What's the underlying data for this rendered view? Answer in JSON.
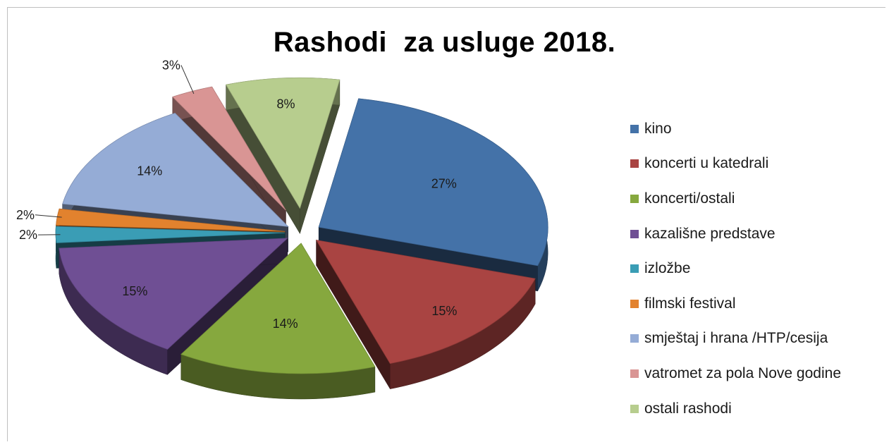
{
  "chart_data": {
    "type": "pie",
    "title": "Rashodi  za usluge 2018.",
    "categories": [
      "kino",
      "koncerti u katedrali",
      "koncerti/ostali",
      "kazališne predstave",
      "izložbe",
      "filmski festival",
      "smještaj i hrana /HTP/cesija",
      "vatromet za pola Nove godine",
      "ostali rashodi"
    ],
    "values": [
      27,
      15,
      14,
      15,
      2,
      2,
      14,
      3,
      8
    ],
    "labels": [
      "27%",
      "15%",
      "14%",
      "15%",
      "2%",
      "2%",
      "14%",
      "3%",
      "8%"
    ],
    "colors": [
      "#4472a8",
      "#a94442",
      "#86a83e",
      "#6f4f94",
      "#3a9db5",
      "#e2822e",
      "#95acd6",
      "#d99594",
      "#b7cd8e"
    ],
    "legend_position": "right",
    "style": "3d-exploded"
  }
}
